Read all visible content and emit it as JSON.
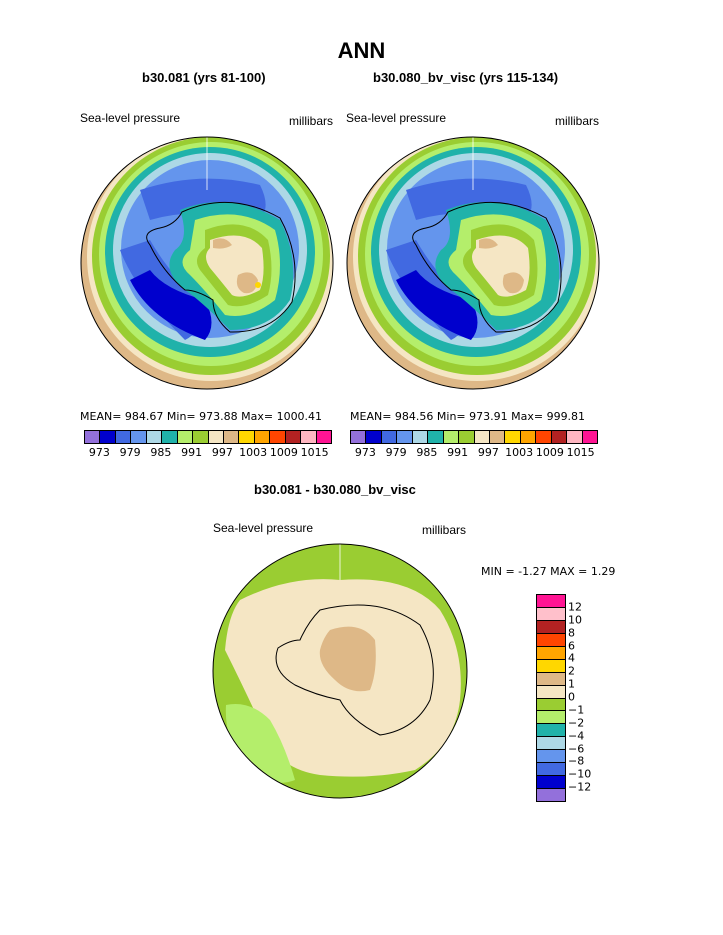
{
  "title": "ANN",
  "panel1": {
    "title": "b30.081 (yrs 81-100)",
    "left_label": "Sea-level pressure",
    "right_label": "millibars",
    "stats": "MEAN= 984.67   Min= 973.88   Max= 1000.41"
  },
  "panel2": {
    "title": "b30.080_bv_visc (yrs 115-134)",
    "left_label": "Sea-level pressure",
    "right_label": "millibars",
    "stats": "MEAN= 984.56   Min= 973.91   Max= 999.81"
  },
  "diff": {
    "title": "b30.081 - b30.080_bv_visc",
    "left_label": "Sea-level pressure",
    "right_label": "millibars",
    "stats": "MIN =   -1.27  MAX =    1.29"
  },
  "colors": {
    "levels_scale": [
      "#9370db",
      "#0000cd",
      "#4169e1",
      "#6495ed",
      "#add8e6",
      "#20b2aa",
      "#b4ee6b",
      "#9acd32",
      "#f5e6c4",
      "#deb887",
      "#ffd700",
      "#ffa500",
      "#ff4500",
      "#b22222",
      "#ffb6c1",
      "#ff1493"
    ],
    "diff_scale": [
      "#ff1493",
      "#ffc0cb",
      "#b22222",
      "#ff4500",
      "#ffa500",
      "#ffd700",
      "#deb887",
      "#f5e6c4",
      "#9acd32",
      "#b4ee6b",
      "#20b2aa",
      "#add8e6",
      "#6495ed",
      "#4169e1",
      "#0000cd",
      "#9370db"
    ]
  },
  "chart_data": [
    {
      "type": "heatmap",
      "projection": "south-polar-stereographic",
      "title": "b30.081 (yrs 81-100)",
      "variable": "Sea-level pressure",
      "units": "millibars",
      "mean": 984.67,
      "min": 973.88,
      "max": 1000.41,
      "colorbar_ticks": [
        "973",
        "979",
        "985",
        "991",
        "997",
        "1003",
        "1009",
        "1015"
      ]
    },
    {
      "type": "heatmap",
      "projection": "south-polar-stereographic",
      "title": "b30.080_bv_visc (yrs 115-134)",
      "variable": "Sea-level pressure",
      "units": "millibars",
      "mean": 984.56,
      "min": 973.91,
      "max": 999.81,
      "colorbar_ticks": [
        "973",
        "979",
        "985",
        "991",
        "997",
        "1003",
        "1009",
        "1015"
      ]
    },
    {
      "type": "heatmap",
      "projection": "south-polar-stereographic",
      "title": "b30.081 - b30.080_bv_visc",
      "variable": "Sea-level pressure",
      "units": "millibars",
      "min": -1.27,
      "max": 1.29,
      "colorbar_ticks": [
        "12",
        "10",
        "8",
        "6",
        "4",
        "2",
        "1",
        "0",
        "−1",
        "−2",
        "−4",
        "−6",
        "−8",
        "−10",
        "−12"
      ]
    }
  ]
}
